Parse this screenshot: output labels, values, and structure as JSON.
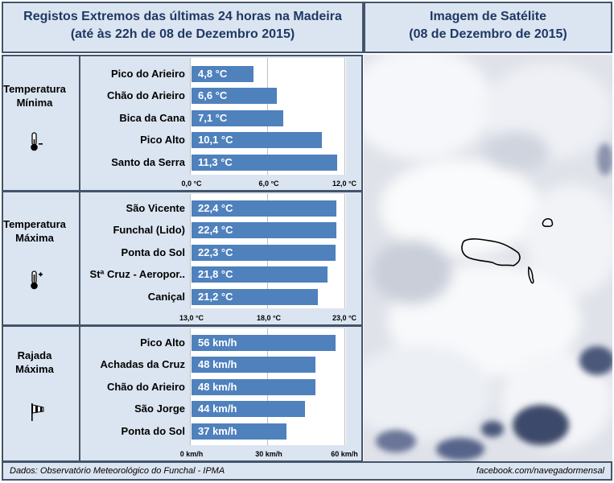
{
  "header_left": {
    "line1": "Registos Extremos das últimas 24 horas na Madeira",
    "line2": "(até às 22h de 08 de Dezembro 2015)"
  },
  "header_right": {
    "line1": "Imagem de Satélite",
    "line2": "(08 de Dezembro de 2015)"
  },
  "sections": [
    {
      "label_line1": "Temperatura",
      "label_line2": "Mínima",
      "icon": "thermometer-minus-icon"
    },
    {
      "label_line1": "Temperatura",
      "label_line2": "Máxima",
      "icon": "thermometer-plus-icon"
    },
    {
      "label_line1": "Rajada",
      "label_line2": "Máxima",
      "icon": "windsock-icon"
    }
  ],
  "footer": {
    "source": "Dados:  Observatório Meteorológico do Funchal - IPMA",
    "credit": "facebook.com/navegadormensal"
  },
  "colors": {
    "bar": "#4f81bd",
    "panel": "#dbe5f1",
    "border": "#44546a",
    "title": "#1f3864"
  },
  "chart_data": [
    {
      "type": "bar",
      "orientation": "horizontal",
      "categories": [
        "Pico do Arieiro",
        "Chão do Arieiro",
        "Bica da Cana",
        "Pico Alto",
        "Santo da Serra"
      ],
      "values": [
        4.8,
        6.6,
        7.1,
        10.1,
        11.3
      ],
      "labels": [
        "4,8 °C",
        "6,6 °C",
        "7,1 °C",
        "10,1 °C",
        "11,3 °C"
      ],
      "xlim": [
        0,
        12
      ],
      "ticks": [
        0,
        6,
        12
      ],
      "tick_labels": [
        "0,0 °C",
        "6,0 °C",
        "12,0 °C"
      ]
    },
    {
      "type": "bar",
      "orientation": "horizontal",
      "categories": [
        "São Vicente",
        "Funchal (Lido)",
        "Ponta do Sol",
        "Stª Cruz - Aeropor..",
        "Caniçal"
      ],
      "values": [
        22.4,
        22.4,
        22.3,
        21.8,
        21.2
      ],
      "labels": [
        "22,4 °C",
        "22,4 °C",
        "22,3 °C",
        "21,8 °C",
        "21,2 °C"
      ],
      "xlim": [
        13,
        23
      ],
      "ticks": [
        13,
        18,
        23
      ],
      "tick_labels": [
        "13,0 °C",
        "18,0 °C",
        "23,0 °C"
      ]
    },
    {
      "type": "bar",
      "orientation": "horizontal",
      "categories": [
        "Pico Alto",
        "Achadas da Cruz",
        "Chão do Arieiro",
        "São Jorge",
        "Ponta do Sol"
      ],
      "values": [
        56,
        48,
        48,
        44,
        37
      ],
      "labels": [
        "56 km/h",
        "48 km/h",
        "48 km/h",
        "44 km/h",
        "37 km/h"
      ],
      "xlim": [
        0,
        60
      ],
      "ticks": [
        0,
        30,
        60
      ],
      "tick_labels": [
        "0 km/h",
        "30 km/h",
        "60 km/h"
      ]
    }
  ]
}
